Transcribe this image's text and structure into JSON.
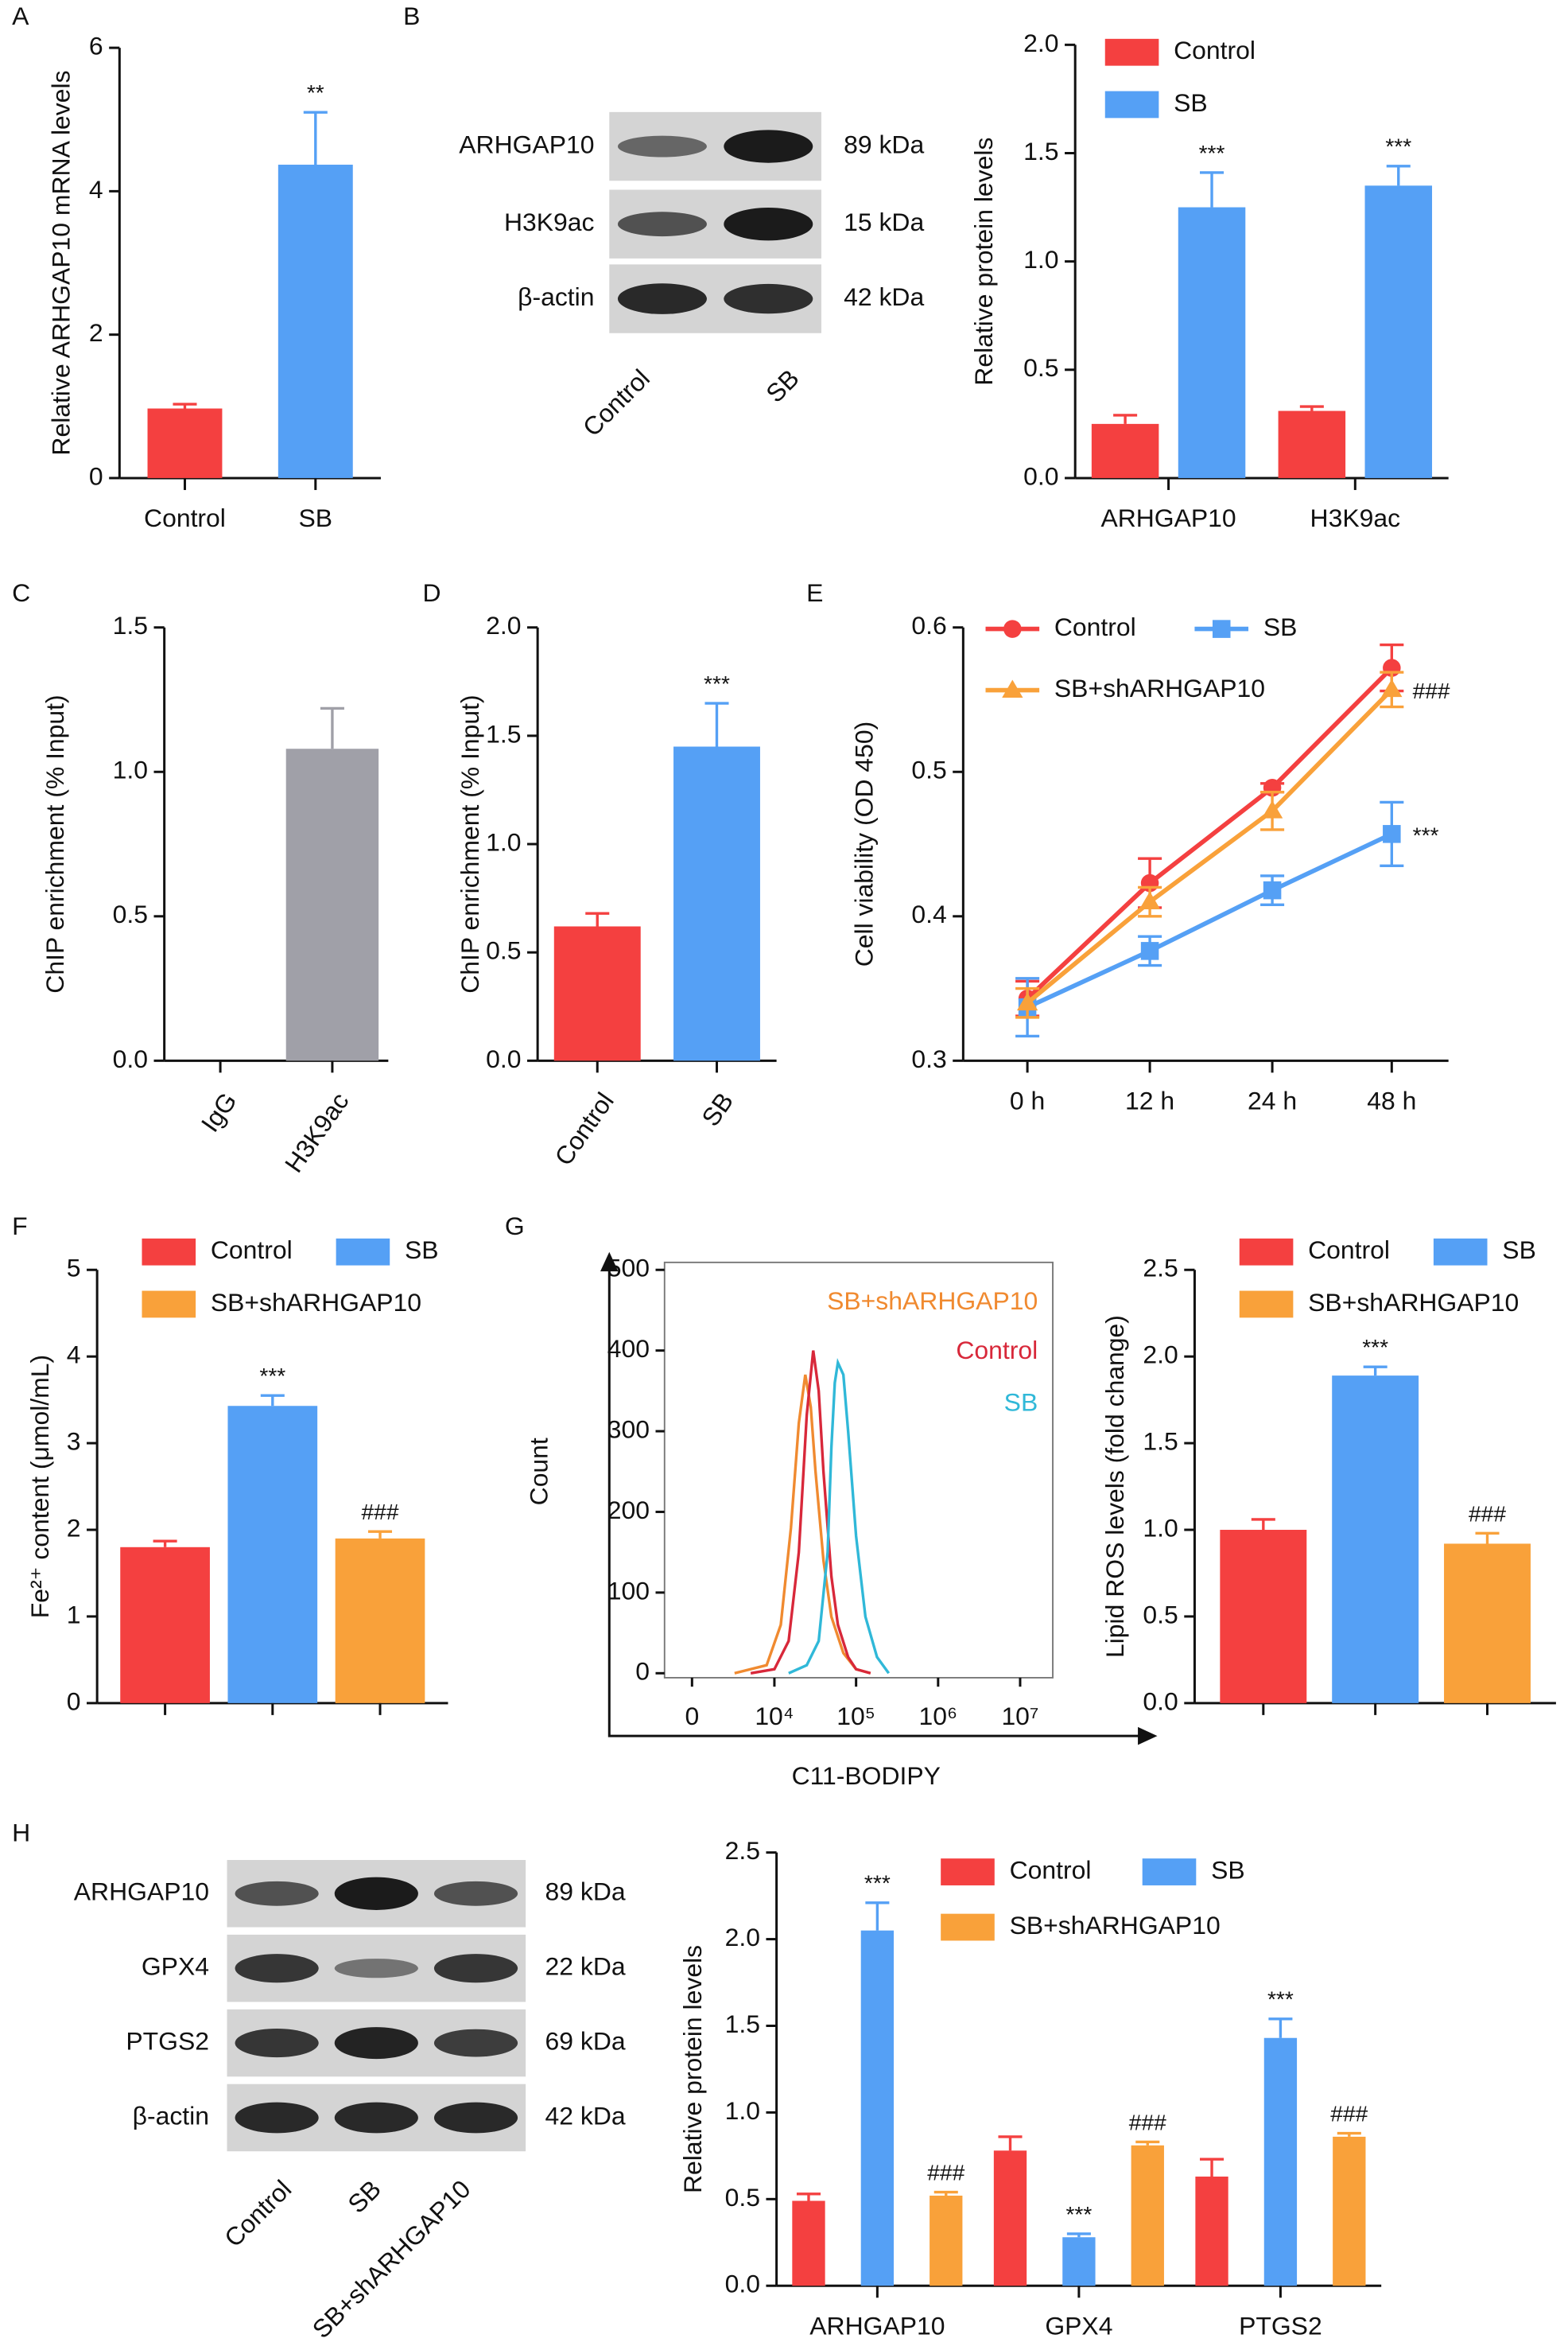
{
  "panel_labels": [
    "A",
    "B",
    "C",
    "D",
    "E",
    "F",
    "G",
    "H"
  ],
  "blots": [
    {
      "proteins": [
        {
          "name": "ARHGAP10",
          "size": "89 kDa"
        },
        {
          "name": "H3K9ac",
          "size": "15 kDa"
        },
        {
          "name": "β-actin",
          "size": "42 kDa"
        }
      ],
      "lanes": [
        "Control",
        "SB"
      ]
    },
    {
      "proteins": [
        {
          "name": "ARHGAP10",
          "size": "89 kDa"
        },
        {
          "name": "GPX4",
          "size": "22 kDa"
        },
        {
          "name": "PTGS2",
          "size": "69 kDa"
        },
        {
          "name": "β-actin",
          "size": "42 kDa"
        }
      ],
      "lanes": [
        "Control",
        "SB",
        "SB+shARHGAP10"
      ]
    }
  ],
  "chart_data": [
    {
      "type": "bar",
      "ylabel": "Relative ARHGAP10 mRNA levels",
      "categories": [
        "Control",
        "SB"
      ],
      "values": [
        0.97,
        4.37
      ],
      "errors": [
        0.06,
        0.73
      ],
      "colors": [
        "#f44040",
        "#55a0f5"
      ],
      "significance": [
        null,
        "**"
      ],
      "ylim": [
        0,
        6
      ],
      "yticks": [
        0,
        2,
        4,
        6
      ]
    },
    {
      "type": "bar",
      "ylabel": "Relative protein levels",
      "categories": [
        "ARHGAP10",
        "H3K9ac"
      ],
      "series": [
        {
          "name": "Control",
          "color": "#f44040",
          "values": [
            0.25,
            0.31
          ],
          "errors": [
            0.04,
            0.02
          ],
          "significance": [
            null,
            null
          ]
        },
        {
          "name": "SB",
          "color": "#55a0f5",
          "values": [
            1.25,
            1.35
          ],
          "errors": [
            0.16,
            0.09
          ],
          "significance": [
            "***",
            "***"
          ]
        }
      ],
      "ylim": [
        0,
        2
      ],
      "yticks": [
        {
          "value": 0,
          "label": "0.0"
        },
        0.5,
        {
          "value": 1,
          "label": "1.0"
        },
        1.5,
        {
          "value": 2,
          "label": "2.0"
        }
      ]
    },
    {
      "type": "bar",
      "ylabel": "ChIP enrichment (% Input)",
      "categories": [
        "IgG",
        "H3K9ac"
      ],
      "values": [
        0,
        1.08
      ],
      "errors": [
        0,
        0.14
      ],
      "colors": [
        "#a0a0a8",
        "#a0a0a8"
      ],
      "significance": [
        null,
        null
      ],
      "ylim": [
        0,
        1.5
      ],
      "yticks": [
        {
          "value": 0,
          "label": "0.0"
        },
        0.5,
        {
          "value": 1,
          "label": "1.0"
        },
        1.5
      ]
    },
    {
      "type": "bar",
      "ylabel": "ChIP enrichment (% Input)",
      "categories": [
        "Control",
        "SB"
      ],
      "values": [
        0.62,
        1.45
      ],
      "errors": [
        0.06,
        0.2
      ],
      "colors": [
        "#f44040",
        "#55a0f5"
      ],
      "significance": [
        null,
        "***"
      ],
      "ylim": [
        0,
        2
      ],
      "yticks": [
        {
          "value": 0,
          "label": "0.0"
        },
        0.5,
        {
          "value": 1,
          "label": "1.0"
        },
        1.5,
        {
          "value": 2,
          "label": "2.0"
        }
      ]
    },
    {
      "type": "line",
      "ylabel": "Cell viability (OD 450)",
      "categories": [
        "0 h",
        "12 h",
        "24 h",
        "48 h"
      ],
      "series": [
        {
          "name": "Control",
          "color": "#f44040",
          "marker": "circle",
          "values": [
            0.343,
            0.423,
            0.489,
            0.572
          ],
          "errors": [
            0.012,
            0.017,
            0.003,
            0.016
          ],
          "significance": [
            null,
            null,
            null,
            null
          ]
        },
        {
          "name": "SB",
          "color": "#55a0f5",
          "marker": "square",
          "values": [
            0.337,
            0.376,
            0.418,
            0.457
          ],
          "errors": [
            0.02,
            0.01,
            0.01,
            0.022
          ],
          "significance": [
            null,
            null,
            null,
            "***"
          ]
        },
        {
          "name": "SB+shARHGAP10",
          "color": "#f9a13a",
          "marker": "triangle",
          "values": [
            0.34,
            0.41,
            0.473,
            0.557
          ],
          "errors": [
            0.01,
            0.01,
            0.013,
            0.012
          ],
          "significance": [
            null,
            null,
            null,
            "###"
          ]
        }
      ],
      "ylim": [
        0.3,
        0.6
      ],
      "yticks": [
        0.3,
        0.4,
        0.5,
        0.6
      ]
    },
    {
      "type": "bar",
      "ylabel": "Fe²⁺ content (μmol/mL)",
      "categories": [
        null
      ],
      "series": [
        {
          "name": "Control",
          "color": "#f44040",
          "values": [
            1.8
          ],
          "errors": [
            0.07
          ],
          "significance": [
            null
          ]
        },
        {
          "name": "SB",
          "color": "#55a0f5",
          "values": [
            3.43
          ],
          "errors": [
            0.12
          ],
          "significance": [
            "***"
          ]
        },
        {
          "name": "SB+shARHGAP10",
          "color": "#f9a13a",
          "values": [
            1.9
          ],
          "errors": [
            0.08
          ],
          "significance": [
            "###"
          ]
        }
      ],
      "ylim": [
        0,
        5
      ],
      "yticks": [
        0,
        1,
        2,
        3,
        4,
        5
      ]
    },
    {
      "type": "histogram_curve",
      "ylabel": "Count",
      "xlabel": "C11-BODIPY",
      "xscale": "biexponential",
      "series": [
        {
          "name": "SB+shARHGAP10",
          "color": "#f08a30",
          "x": [
            3000,
            8000,
            12000,
            16000,
            20000,
            24000,
            28000,
            32000,
            40000,
            50000,
            70000,
            100000,
            150000
          ],
          "values": [
            0,
            10,
            60,
            180,
            310,
            370,
            330,
            250,
            140,
            70,
            25,
            5,
            0
          ]
        },
        {
          "name": "Control",
          "color": "#d8283a",
          "x": [
            5000,
            10000,
            15000,
            20000,
            25000,
            30000,
            35000,
            40000,
            50000,
            60000,
            80000,
            100000,
            150000
          ],
          "values": [
            0,
            5,
            40,
            150,
            320,
            400,
            350,
            250,
            120,
            60,
            20,
            5,
            0
          ]
        },
        {
          "name": "SB",
          "color": "#30b8d8",
          "x": [
            15000,
            25000,
            35000,
            45000,
            50000,
            55000,
            60000,
            70000,
            80000,
            100000,
            130000,
            180000,
            250000
          ],
          "values": [
            0,
            10,
            40,
            150,
            280,
            360,
            385,
            370,
            300,
            170,
            70,
            20,
            0
          ]
        }
      ],
      "xlim": [
        -1700,
        25000000
      ],
      "xticks": [
        0,
        {
          "value": 10000,
          "label": "10⁴"
        },
        {
          "value": 100000,
          "label": "10⁵"
        },
        {
          "value": 1000000,
          "label": "10⁶"
        },
        {
          "value": 10000000,
          "label": "10⁷"
        }
      ],
      "ylim": [
        0,
        500
      ],
      "yticks": [
        0,
        100,
        200,
        300,
        400,
        500
      ]
    },
    {
      "type": "bar",
      "ylabel": "Lipid ROS levels (fold change)",
      "categories": [
        null
      ],
      "series": [
        {
          "name": "Control",
          "color": "#f44040",
          "values": [
            1.0
          ],
          "errors": [
            0.06
          ],
          "significance": [
            null
          ]
        },
        {
          "name": "SB",
          "color": "#55a0f5",
          "values": [
            1.89
          ],
          "errors": [
            0.05
          ],
          "significance": [
            "***"
          ]
        },
        {
          "name": "SB+shARHGAP10",
          "color": "#f9a13a",
          "values": [
            0.92
          ],
          "errors": [
            0.06
          ],
          "significance": [
            "###"
          ]
        }
      ],
      "ylim": [
        0,
        2.5
      ],
      "yticks": [
        {
          "value": 0,
          "label": "0.0"
        },
        0.5,
        {
          "value": 1,
          "label": "1.0"
        },
        1.5,
        {
          "value": 2,
          "label": "2.0"
        },
        2.5
      ]
    },
    {
      "type": "bar",
      "ylabel": "Relative protein levels",
      "categories": [
        "ARHGAP10",
        "GPX4",
        "PTGS2"
      ],
      "series": [
        {
          "name": "Control",
          "color": "#f44040",
          "values": [
            0.49,
            0.78,
            0.63
          ],
          "errors": [
            0.04,
            0.08,
            0.1
          ],
          "significance": [
            null,
            null,
            null
          ]
        },
        {
          "name": "SB",
          "color": "#55a0f5",
          "values": [
            2.05,
            0.28,
            1.43
          ],
          "errors": [
            0.16,
            0.02,
            0.11
          ],
          "significance": [
            "***",
            "***",
            "***"
          ]
        },
        {
          "name": "SB+shARHGAP10",
          "color": "#f9a13a",
          "values": [
            0.52,
            0.81,
            0.86
          ],
          "errors": [
            0.02,
            0.02,
            0.02
          ],
          "significance": [
            "###",
            "###",
            "###"
          ]
        }
      ],
      "ylim": [
        0,
        2.5
      ],
      "yticks": [
        {
          "value": 0,
          "label": "0.0"
        },
        0.5,
        {
          "value": 1,
          "label": "1.0"
        },
        1.5,
        {
          "value": 2,
          "label": "2.0"
        },
        2.5
      ]
    }
  ]
}
